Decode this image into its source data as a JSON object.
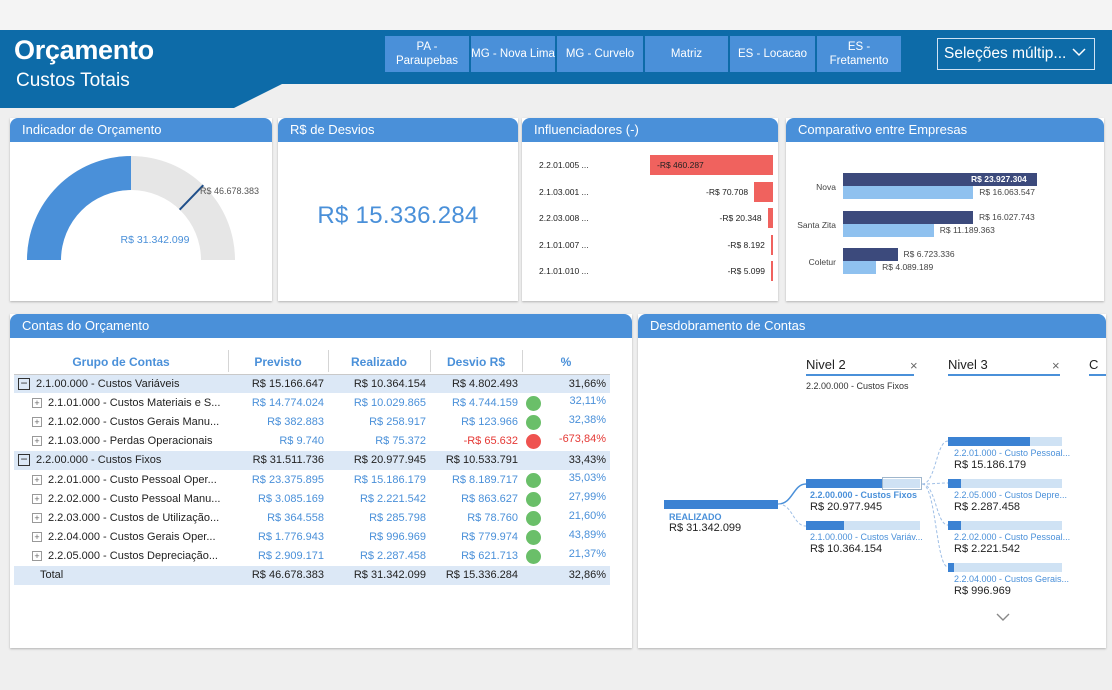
{
  "header": {
    "title": "Orçamento",
    "subtitle": "Custos Totais",
    "buttons": [
      "PA - Paraupebas",
      "MG - Nova Lima",
      "MG - Curvelo",
      "Matriz",
      "ES - Locacao",
      "ES - Fretamento"
    ],
    "multiselect": "Seleções múltip..."
  },
  "gauge": {
    "title": "Indicador de Orçamento",
    "value_label": "R$ 31.342.099",
    "target_label": "R$ 46.678.383",
    "value": 31342099,
    "target": 46678383,
    "max": 62684198,
    "fill_color": "#4a90d9",
    "track_color": "#e6e6e6"
  },
  "desvios": {
    "title": "R$ de Desvios",
    "value": "R$ 15.336.284"
  },
  "influenciadores": {
    "title": "Influenciadores (-)",
    "rows": [
      {
        "label": "2.2.01.005 ...",
        "value": "-R$ 460.287",
        "amount": 460287
      },
      {
        "label": "2.1.03.001 ...",
        "value": "-R$ 70.708",
        "amount": 70708
      },
      {
        "label": "2.2.03.008 ...",
        "value": "-R$ 20.348",
        "amount": 20348
      },
      {
        "label": "2.1.01.007 ...",
        "value": "-R$ 8.192",
        "amount": 8192
      },
      {
        "label": "2.1.01.010 ...",
        "value": "-R$ 5.099",
        "amount": 5099
      }
    ]
  },
  "comparativo": {
    "title": "Comparativo entre Empresas",
    "rows": [
      {
        "name": "Nova",
        "previsto": "R$ 23.927.304",
        "realizado": "R$ 16.063.547",
        "previsto_v": 23927304,
        "realizado_v": 16063547
      },
      {
        "name": "Santa Zita",
        "previsto": "R$ 16.027.743",
        "realizado": "R$ 11.189.363",
        "previsto_v": 16027743,
        "realizado_v": 11189363
      },
      {
        "name": "Coletur",
        "previsto": "R$ 6.723.336",
        "realizado": "R$ 4.089.189",
        "previsto_v": 6723336,
        "realizado_v": 4089189
      }
    ]
  },
  "contas": {
    "title": "Contas do Orçamento",
    "columns": [
      "Grupo de Contas",
      "Previsto",
      "Realizado",
      "Desvio R$",
      "%"
    ],
    "rows": [
      {
        "type": "grp",
        "name": "2.1.00.000 - Custos Variáveis",
        "previsto": "R$ 15.166.647",
        "realizado": "R$ 10.364.154",
        "desvio": "R$ 4.802.493",
        "pct": "31,66%",
        "status": ""
      },
      {
        "type": "sub",
        "name": "2.1.01.000 - Custos Materiais e S...",
        "previsto": "R$ 14.774.024",
        "realizado": "R$ 10.029.865",
        "desvio": "R$ 4.744.159",
        "pct": "32,11%",
        "status": "green"
      },
      {
        "type": "sub",
        "name": "2.1.02.000 - Custos Gerais Manu...",
        "previsto": "R$ 382.883",
        "realizado": "R$ 258.917",
        "desvio": "R$ 123.966",
        "pct": "32,38%",
        "status": "green"
      },
      {
        "type": "sub",
        "name": "2.1.03.000 - Perdas Operacionais",
        "previsto": "R$ 9.740",
        "realizado": "R$ 75.372",
        "desvio": "-R$ 65.632",
        "pct": "-673,84%",
        "status": "red"
      },
      {
        "type": "grp",
        "name": "2.2.00.000 - Custos Fixos",
        "previsto": "R$ 31.511.736",
        "realizado": "R$ 20.977.945",
        "desvio": "R$ 10.533.791",
        "pct": "33,43%",
        "status": ""
      },
      {
        "type": "sub",
        "name": "2.2.01.000 - Custo Pessoal Oper...",
        "previsto": "R$ 23.375.895",
        "realizado": "R$ 15.186.179",
        "desvio": "R$ 8.189.717",
        "pct": "35,03%",
        "status": "green"
      },
      {
        "type": "sub",
        "name": "2.2.02.000 - Custo Pessoal Manu...",
        "previsto": "R$ 3.085.169",
        "realizado": "R$ 2.221.542",
        "desvio": "R$ 863.627",
        "pct": "27,99%",
        "status": "green"
      },
      {
        "type": "sub",
        "name": "2.2.03.000 - Custos de Utilização...",
        "previsto": "R$ 364.558",
        "realizado": "R$ 285.798",
        "desvio": "R$ 78.760",
        "pct": "21,60%",
        "status": "green"
      },
      {
        "type": "sub",
        "name": "2.2.04.000 - Custos Gerais Oper...",
        "previsto": "R$ 1.776.943",
        "realizado": "R$ 996.969",
        "desvio": "R$ 779.974",
        "pct": "43,89%",
        "status": "green"
      },
      {
        "type": "sub",
        "name": "2.2.05.000 - Custos Depreciação...",
        "previsto": "R$ 2.909.171",
        "realizado": "R$ 2.287.458",
        "desvio": "R$ 621.713",
        "pct": "21,37%",
        "status": "green"
      },
      {
        "type": "total",
        "name": "Total",
        "previsto": "R$ 46.678.383",
        "realizado": "R$ 31.342.099",
        "desvio": "R$ 15.336.284",
        "pct": "32,86%",
        "status": ""
      }
    ],
    "status_colors": {
      "green": "#6abf69",
      "red": "#ef5350"
    }
  },
  "desdobramento": {
    "title": "Desdobramento de Contas",
    "level2": {
      "header": "Nivel 2",
      "selected": "2.2.00.000 - Custos Fixos"
    },
    "level3": {
      "header": "Nivel 3"
    },
    "level4_partial": "C",
    "root": {
      "label": "REALIZADO",
      "value": "R$ 31.342.099"
    },
    "l2_nodes": [
      {
        "label": "2.2.00.000 - Custos Fixos",
        "value": "R$ 20.977.945",
        "fraction": 0.67
      },
      {
        "label": "2.1.00.000 - Custos Variáv...",
        "value": "R$ 10.364.154",
        "fraction": 0.33
      }
    ],
    "l3_nodes": [
      {
        "label": "2.2.01.000 - Custo Pessoal...",
        "value": "R$ 15.186.179",
        "fraction": 0.72
      },
      {
        "label": "2.2.05.000 - Custos Depre...",
        "value": "R$ 2.287.458",
        "fraction": 0.11
      },
      {
        "label": "2.2.02.000 - Custo Pessoal...",
        "value": "R$ 2.221.542",
        "fraction": 0.11
      },
      {
        "label": "2.2.04.000 - Custos Gerais...",
        "value": "R$ 996.969",
        "fraction": 0.05
      }
    ]
  }
}
